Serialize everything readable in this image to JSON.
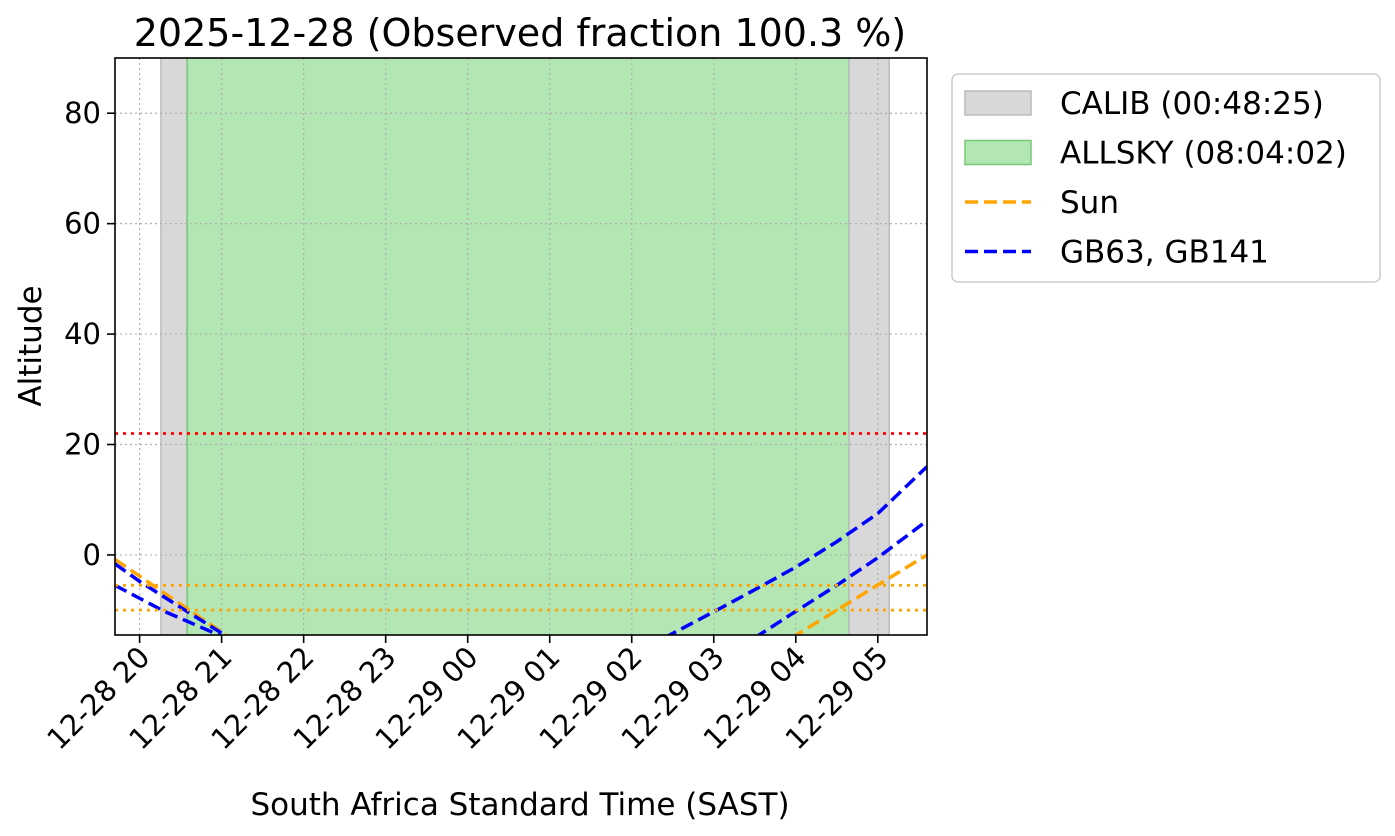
{
  "chart_data": {
    "type": "line",
    "title": "2025-12-28 (Observed fraction 100.3 %)",
    "xlabel": "South Africa Standard Time (SAST)",
    "ylabel": "Altitude",
    "x_unit": "hours relative to 2025-12-28 00:00 SAST",
    "xlim": [
      19.7,
      29.6
    ],
    "ylim": [
      -14.5,
      90
    ],
    "grid": true,
    "legend_location": "outside upper right",
    "x_ticks": [
      {
        "value": 20,
        "label": "12-28 20"
      },
      {
        "value": 21,
        "label": "12-28 21"
      },
      {
        "value": 22,
        "label": "12-28 22"
      },
      {
        "value": 23,
        "label": "12-28 23"
      },
      {
        "value": 24,
        "label": "12-29 00"
      },
      {
        "value": 25,
        "label": "12-29 01"
      },
      {
        "value": 26,
        "label": "12-29 02"
      },
      {
        "value": 27,
        "label": "12-29 03"
      },
      {
        "value": 28,
        "label": "12-29 04"
      },
      {
        "value": 29,
        "label": "12-29 05"
      }
    ],
    "y_ticks": [
      {
        "value": 0,
        "label": "0"
      },
      {
        "value": 20,
        "label": "20"
      },
      {
        "value": 40,
        "label": "40"
      },
      {
        "value": 60,
        "label": "60"
      },
      {
        "value": 80,
        "label": "80"
      }
    ],
    "spans": [
      {
        "name": "CALIB (00:48:25)",
        "start": 20.26,
        "end": 20.58,
        "color": "#d8d8d8",
        "edge": "#bbbbbb"
      },
      {
        "name": "ALLSKY (08:04:02)",
        "start": 20.58,
        "end": 28.65,
        "color": "#b2e6b3",
        "edge": "#77c878"
      },
      {
        "name": "CALIB (00:48:25)",
        "start": 28.65,
        "end": 29.14,
        "color": "#d8d8d8",
        "edge": "#bbbbbb"
      }
    ],
    "hlines": [
      {
        "y": 22,
        "color": "#ff0000"
      },
      {
        "y": -5.5,
        "color": "#ffa500"
      },
      {
        "y": -10,
        "color": "#ffa500"
      }
    ],
    "series": [
      {
        "name": "Sun",
        "color": "#ffa500",
        "x": [
          19.7,
          21.2
        ],
        "y": [
          -0.8,
          -16
        ]
      },
      {
        "color": "#ffa500",
        "x": [
          27.95,
          29.6
        ],
        "y": [
          -15,
          0
        ]
      },
      {
        "name": "GB63, GB141",
        "color": "#0000ff",
        "x": [
          19.7,
          20.0,
          20.5,
          21.2
        ],
        "y": [
          -1.6,
          -4.8,
          -9.5,
          -16
        ]
      },
      {
        "color": "#0000ff",
        "x": [
          19.7,
          20.3,
          21.2
        ],
        "y": [
          -5.5,
          -10.2,
          -16
        ]
      },
      {
        "color": "#0000ff",
        "x": [
          26.4,
          27.0,
          27.5,
          28.0,
          28.5,
          29.0,
          29.6
        ],
        "y": [
          -15,
          -10.3,
          -6.3,
          -2.2,
          2.4,
          7.5,
          16
        ]
      },
      {
        "color": "#0000ff",
        "x": [
          27.5,
          28.0,
          28.5,
          29.0,
          29.6
        ],
        "y": [
          -15,
          -10.2,
          -5.5,
          -0.5,
          6.2
        ]
      }
    ],
    "legend": [
      {
        "label": "CALIB (00:48:25)",
        "kind": "patch",
        "color": "#d8d8d8",
        "edge": "#bbbbbb"
      },
      {
        "label": "ALLSKY (08:04:02)",
        "kind": "patch",
        "color": "#b2e6b3",
        "edge": "#77c878"
      },
      {
        "label": "Sun",
        "kind": "line",
        "color": "#ffa500"
      },
      {
        "label": "GB63, GB141",
        "kind": "line",
        "color": "#0000ff"
      }
    ]
  }
}
